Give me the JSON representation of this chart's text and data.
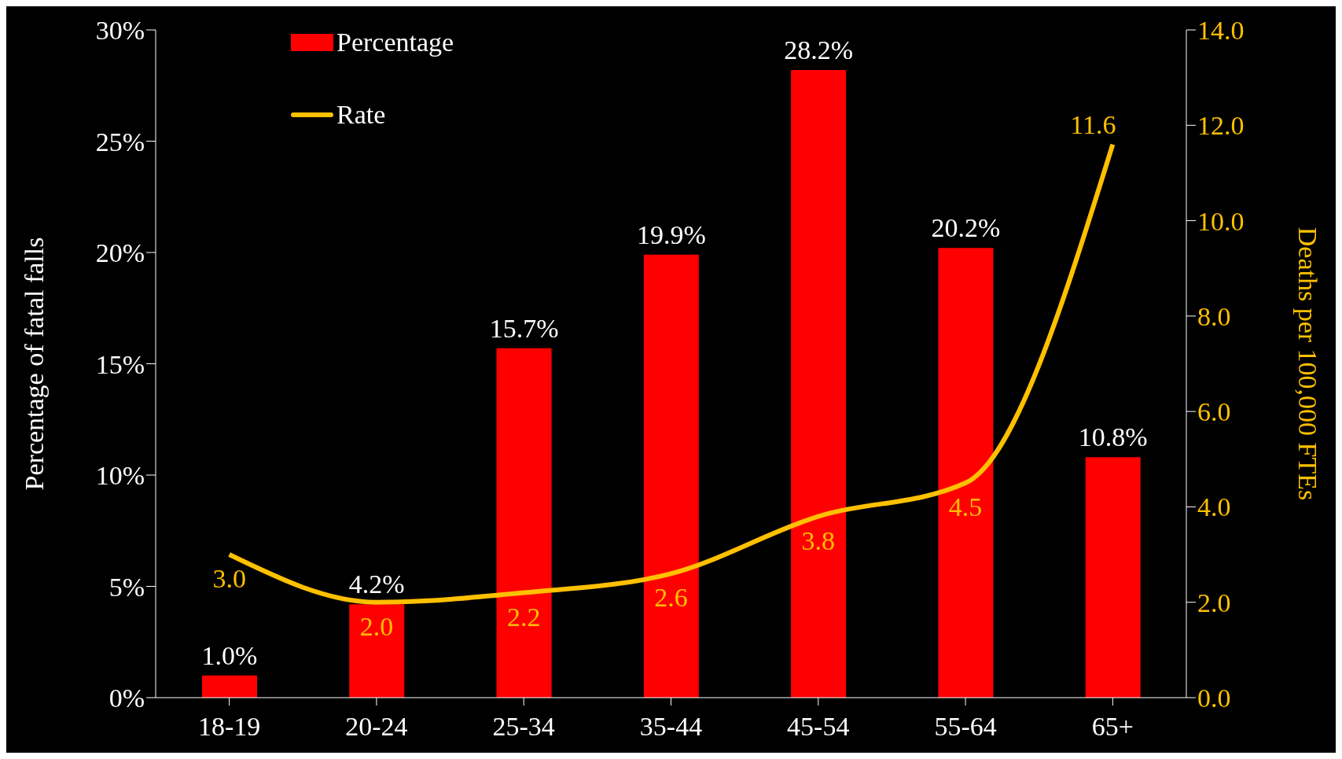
{
  "chart_data": {
    "type": "bar",
    "categories": [
      "18-19",
      "20-24",
      "25-34",
      "35-44",
      "45-54",
      "55-64",
      "65+"
    ],
    "ylabel": "Percentage of fatal falls",
    "y2label": "Deaths per 100,000 FTEs",
    "series": [
      {
        "name": "Percentage",
        "color": "#ff0000",
        "values": [
          1.0,
          4.2,
          15.7,
          19.9,
          28.2,
          20.2,
          10.8
        ],
        "value_labels": [
          "1.0%",
          "4.2%",
          "15.7%",
          "19.9%",
          "28.2%",
          "20.2%",
          "10.8%"
        ]
      },
      {
        "name": "Rate",
        "type": "line",
        "axis": "y2",
        "color": "#ffc000",
        "values": [
          3.0,
          2.0,
          2.2,
          2.6,
          3.8,
          4.5,
          11.6
        ],
        "value_labels": [
          "3.0",
          "2.0",
          "2.2",
          "2.6",
          "3.8",
          "4.5",
          "11.6"
        ]
      }
    ],
    "ylim": [
      0,
      30
    ],
    "yticks": [
      {
        "value": 0,
        "label": "0%"
      },
      {
        "value": 5,
        "label": "5%"
      },
      {
        "value": 10,
        "label": "10%"
      },
      {
        "value": 15,
        "label": "15%"
      },
      {
        "value": 20,
        "label": "20%"
      },
      {
        "value": 25,
        "label": "25%"
      },
      {
        "value": 30,
        "label": "30%"
      }
    ],
    "y2lim": [
      0,
      14
    ],
    "y2ticks": [
      {
        "value": 0,
        "label": "0.0"
      },
      {
        "value": 2,
        "label": "2.0"
      },
      {
        "value": 4,
        "label": "4.0"
      },
      {
        "value": 6,
        "label": "6.0"
      },
      {
        "value": 8,
        "label": "8.0"
      },
      {
        "value": 10,
        "label": "10.0"
      },
      {
        "value": 12,
        "label": "12.0"
      },
      {
        "value": 14,
        "label": "14.0"
      }
    ],
    "grid": false,
    "legend": "top left",
    "marker": "none",
    "line_style": "solid"
  }
}
